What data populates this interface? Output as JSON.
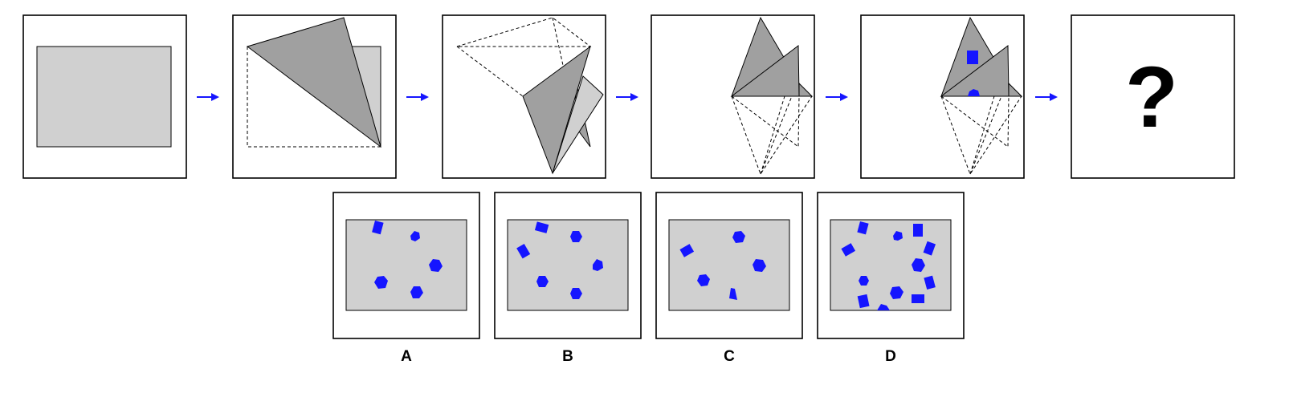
{
  "question_mark": "?",
  "options": [
    {
      "label": "A"
    },
    {
      "label": "B"
    },
    {
      "label": "C"
    },
    {
      "label": "D"
    }
  ],
  "colors": {
    "paper": "#d0d0d0",
    "flap": "#a0a0a0",
    "hole": "#1515ff",
    "arrow": "#1515ff",
    "frame": "#000000"
  },
  "icons": {
    "step_arrow": "right-arrow-icon",
    "punched_hole": "hole-icon"
  }
}
